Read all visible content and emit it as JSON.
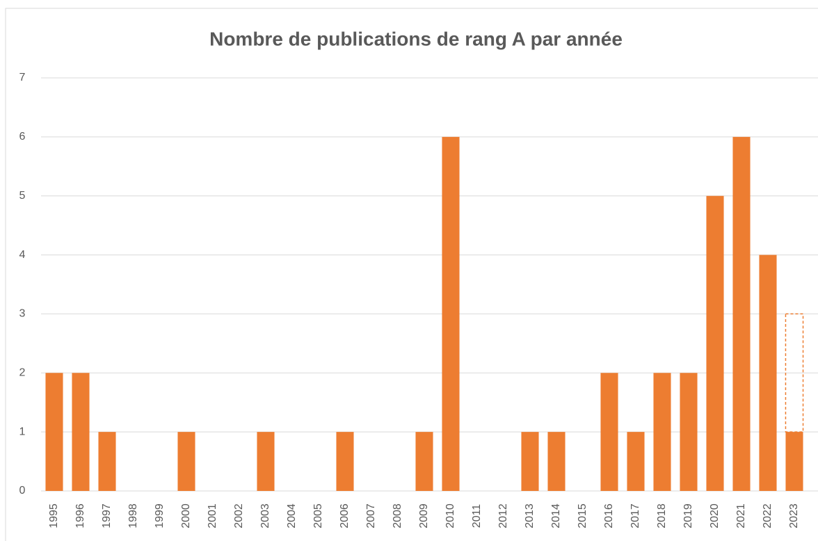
{
  "chart_data": {
    "type": "bar",
    "title": "Nombre de publications de rang A par année",
    "categories": [
      "1995",
      "1996",
      "1997",
      "1998",
      "1999",
      "2000",
      "2001",
      "2002",
      "2003",
      "2004",
      "2005",
      "2006",
      "2007",
      "2008",
      "2009",
      "2010",
      "2011",
      "2012",
      "2013",
      "2014",
      "2015",
      "2016",
      "2017",
      "2018",
      "2019",
      "2020",
      "2021",
      "2022",
      "2023"
    ],
    "stacked": true,
    "series": [
      {
        "color": "#ed7d31",
        "values": [
          2,
          2,
          1,
          0,
          0,
          1,
          0,
          0,
          1,
          0,
          0,
          1,
          0,
          0,
          1,
          6,
          0,
          0,
          1,
          1,
          0,
          2,
          1,
          2,
          2,
          5,
          6,
          4,
          1
        ]
      },
      {
        "color": "#ed7d31",
        "style": "dashed",
        "values": [
          null,
          null,
          null,
          null,
          null,
          null,
          null,
          null,
          null,
          null,
          null,
          null,
          null,
          null,
          null,
          null,
          null,
          null,
          null,
          null,
          null,
          null,
          null,
          null,
          null,
          null,
          null,
          null,
          2
        ]
      }
    ],
    "ylim": [
      0,
      7
    ],
    "yticks": [
      0,
      1,
      2,
      3,
      4,
      5,
      6,
      7
    ],
    "grid": true
  }
}
